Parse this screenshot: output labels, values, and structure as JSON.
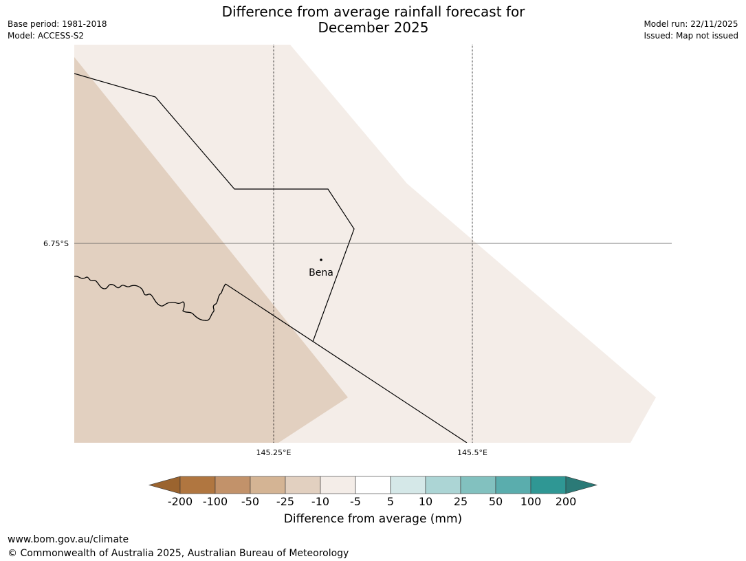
{
  "title": {
    "line1": "Difference from average rainfall forecast for",
    "line2": "December 2025"
  },
  "meta_left": {
    "base_period": "Base period: 1981-2018",
    "model": "Model: ACCESS-S2"
  },
  "meta_right": {
    "model_run": "Model run: 22/11/2025",
    "issued": "Issued: Map not issued"
  },
  "map": {
    "longitude_ticks": [
      "145.25°E",
      "145.5°E"
    ],
    "latitude_ticks": [
      "6.75°S"
    ],
    "places": [
      {
        "name": "Bena"
      }
    ],
    "fill_colors": {
      "light_negative": "#f4ede8",
      "moderate_negative": "#e2d0c0"
    }
  },
  "colorbar": {
    "label": "Difference from average (mm)",
    "ticks": [
      "-200",
      "-100",
      "-50",
      "-25",
      "-10",
      "-5",
      "5",
      "10",
      "25",
      "50",
      "100",
      "200"
    ],
    "colors": [
      "#9b642f",
      "#b07640",
      "#c2926a",
      "#d4b494",
      "#e2d0c0",
      "#f4ede8",
      "#ffffff",
      "#d5e8e8",
      "#acd5d5",
      "#82c1bf",
      "#5aadad",
      "#2f9794",
      "#2b7a77"
    ]
  },
  "footer": {
    "url": "www.bom.gov.au/climate",
    "copyright": "© Commonwealth of Australia 2025, Australian Bureau of Meteorology"
  }
}
